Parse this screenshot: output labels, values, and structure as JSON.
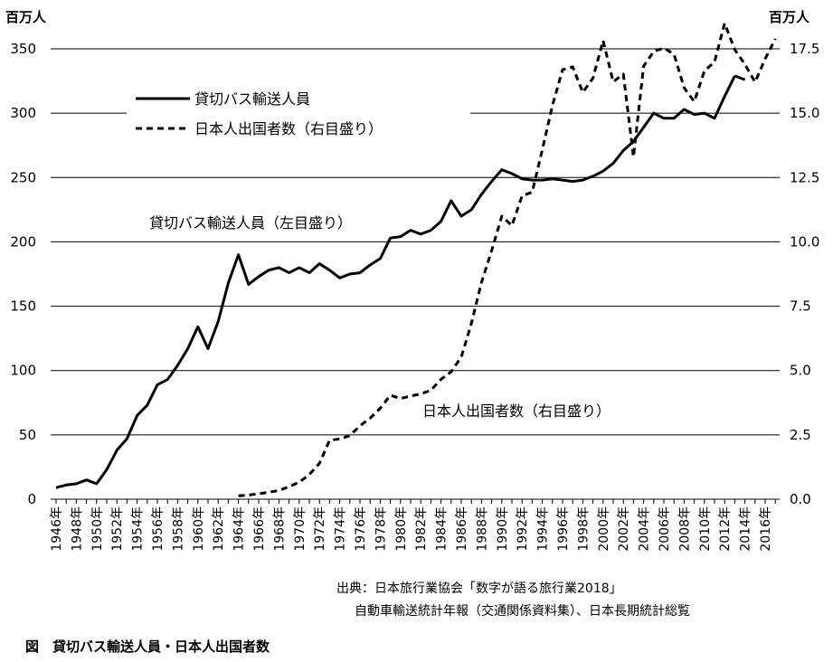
{
  "left_unit": "百万人",
  "right_unit": "百万人",
  "source_line1": "出典：日本旅行業協会「数字が語る旅行業2018」",
  "source_line2": "自動車輸送統計年報（交通関係資料集）、日本長期統計総覧",
  "figure_caption": "図　貸切バス輸送人員・日本人出国者数",
  "chart_data": {
    "type": "line",
    "title": "",
    "legend": [
      {
        "label": "貸切バス輸送人員",
        "style": "solid"
      },
      {
        "label": "日本人出国者数（右目盛り）",
        "style": "dashed"
      }
    ],
    "annotations": [
      {
        "text": "貸切バス輸送人員（左目盛り）",
        "series": "bus"
      },
      {
        "text": "日本人出国者数（右目盛り）",
        "series": "travel"
      }
    ],
    "x_tick_labels": [
      "1946年",
      "1948年",
      "1950年",
      "1952年",
      "1954年",
      "1956年",
      "1958年",
      "1960年",
      "1962年",
      "1964年",
      "1966年",
      "1968年",
      "1970年",
      "1972年",
      "1974年",
      "1976年",
      "1978年",
      "1980年",
      "1982年",
      "1984年",
      "1986年",
      "1988年",
      "1990年",
      "1992年",
      "1994年",
      "1996年",
      "1998年",
      "2000年",
      "2002年",
      "2004年",
      "2006年",
      "2008年",
      "2010年",
      "2012年",
      "2014年",
      "2016年"
    ],
    "y_left": {
      "ticks": [
        "0",
        "50",
        "100",
        "150",
        "200",
        "250",
        "300",
        "350"
      ],
      "ylim": [
        0,
        350
      ]
    },
    "y_right": {
      "ticks": [
        "0.0",
        "2.5",
        "5.0",
        "7.5",
        "10.0",
        "12.5",
        "15.0",
        "17.5"
      ],
      "ylim": [
        0,
        17.5
      ]
    },
    "grid": "horizontal",
    "series": [
      {
        "id": "bus",
        "axis": "left",
        "style": "solid",
        "x": [
          1946,
          1947,
          1948,
          1949,
          1950,
          1951,
          1952,
          1953,
          1954,
          1955,
          1956,
          1957,
          1958,
          1959,
          1960,
          1961,
          1962,
          1963,
          1964,
          1965,
          1966,
          1967,
          1968,
          1969,
          1970,
          1971,
          1972,
          1973,
          1974,
          1975,
          1976,
          1977,
          1978,
          1979,
          1980,
          1981,
          1982,
          1983,
          1984,
          1985,
          1986,
          1987,
          1988,
          1989,
          1990,
          1991,
          1992,
          1993,
          1994,
          1995,
          1996,
          1997,
          1998,
          1999,
          2000,
          2001,
          2002,
          2003,
          2004,
          2005,
          2006,
          2007,
          2008,
          2009,
          2010,
          2011,
          2012,
          2013
        ],
        "values": [
          9,
          11,
          12,
          15,
          12,
          23,
          38,
          47,
          65,
          73,
          89,
          93,
          104,
          117,
          134,
          117,
          138,
          168,
          190,
          167,
          173,
          178,
          180,
          176,
          180,
          176,
          183,
          178,
          172,
          175,
          176,
          182,
          187,
          203,
          204,
          209,
          206,
          209,
          216,
          232,
          220,
          225,
          237,
          247,
          256,
          253,
          249,
          248,
          248,
          249,
          248,
          247,
          248,
          251,
          255,
          261,
          271,
          278,
          289,
          300,
          296,
          296,
          303,
          299,
          300,
          296,
          313,
          329
        ],
        "x2": [
          2013,
          2014
        ],
        "values2": [
          329,
          326
        ]
      },
      {
        "id": "travel",
        "axis": "right",
        "style": "dashed",
        "x": [
          1964,
          1965,
          1966,
          1967,
          1968,
          1969,
          1970,
          1971,
          1972,
          1973,
          1974,
          1975,
          1976,
          1977,
          1978,
          1979,
          1980,
          1981,
          1982,
          1983,
          1984,
          1985,
          1986,
          1987,
          1988,
          1989,
          1990,
          1991,
          1992,
          1993,
          1994,
          1995,
          1996,
          1997,
          1998,
          1999,
          2000,
          2001,
          2002,
          2003,
          2004,
          2005,
          2006,
          2007,
          2008,
          2009,
          2010,
          2011,
          2012,
          2013,
          2014,
          2015,
          2016,
          2017
        ],
        "values": [
          0.13,
          0.16,
          0.21,
          0.27,
          0.34,
          0.49,
          0.66,
          0.96,
          1.39,
          2.29,
          2.34,
          2.47,
          2.85,
          3.15,
          3.53,
          4.04,
          3.91,
          4.01,
          4.09,
          4.23,
          4.66,
          4.95,
          5.52,
          6.83,
          8.43,
          9.66,
          11.0,
          10.63,
          11.79,
          11.93,
          13.58,
          15.3,
          16.69,
          16.8,
          15.81,
          16.36,
          17.82,
          16.22,
          16.52,
          13.3,
          16.83,
          17.4,
          17.53,
          17.29,
          15.99,
          15.45,
          16.64,
          16.99,
          18.49,
          17.47,
          16.9,
          16.21,
          17.11,
          17.89
        ]
      }
    ]
  }
}
